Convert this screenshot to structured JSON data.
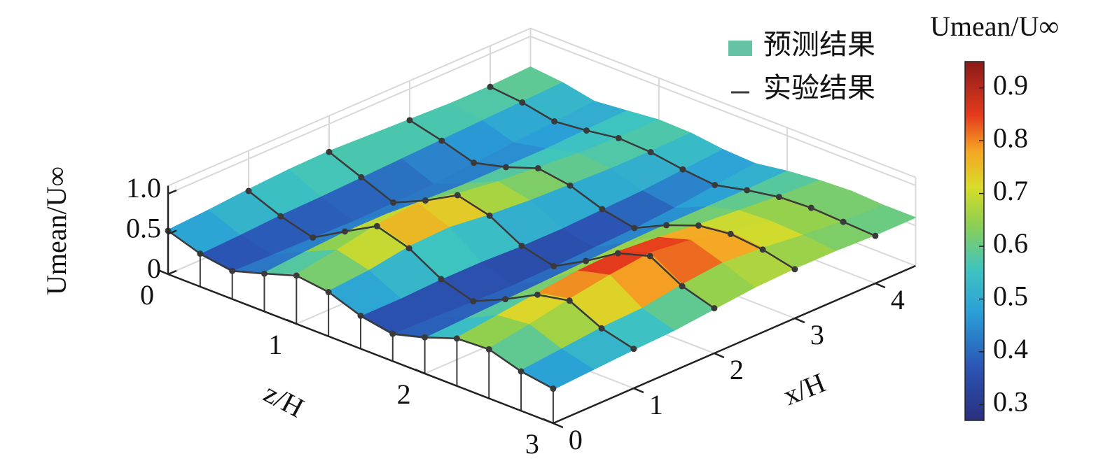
{
  "chart_data": {
    "type": "surface",
    "xlabel": "x/H",
    "zlabel": "z/H",
    "ylabel": "Umean/U∞",
    "colorbar_label": "Umean/U∞",
    "x": [
      0,
      0.5,
      1,
      1.5,
      2,
      2.5,
      3,
      3.5,
      4,
      4.5
    ],
    "z": [
      0,
      0.25,
      0.5,
      0.75,
      1,
      1.25,
      1.5,
      1.75,
      2,
      2.25,
      2.5,
      2.75,
      3
    ],
    "xlim": [
      0,
      4.5
    ],
    "zlim": [
      0,
      3
    ],
    "ylim": [
      0,
      1.1
    ],
    "clim": [
      0.27,
      0.95
    ],
    "xticks": [
      0,
      1,
      2,
      3,
      4
    ],
    "zticks": [
      0,
      1,
      2,
      3
    ],
    "yticks": [
      0,
      0.5,
      {
        "value": 1,
        "label": "1.0"
      }
    ],
    "cticks": [
      0.3,
      0.4,
      0.5,
      0.6,
      0.7,
      0.8,
      0.9
    ],
    "grid": true,
    "legend": "upper right",
    "surface": {
      "name": "预测结果",
      "color": "#66c2a5",
      "values": [
        [
          0.55,
          0.4,
          0.34,
          0.48,
          0.62,
          0.56,
          0.4,
          0.33,
          0.44,
          0.6,
          0.62,
          0.5,
          0.42
        ],
        [
          0.58,
          0.42,
          0.33,
          0.52,
          0.7,
          0.6,
          0.4,
          0.32,
          0.46,
          0.66,
          0.7,
          0.55,
          0.45
        ],
        [
          0.62,
          0.45,
          0.32,
          0.55,
          0.8,
          0.68,
          0.42,
          0.3,
          0.48,
          0.72,
          0.8,
          0.6,
          0.48
        ],
        [
          0.65,
          0.46,
          0.31,
          0.55,
          0.85,
          0.7,
          0.42,
          0.29,
          0.5,
          0.78,
          0.88,
          0.62,
          0.5
        ],
        [
          0.66,
          0.48,
          0.32,
          0.52,
          0.75,
          0.64,
          0.4,
          0.3,
          0.52,
          0.8,
          0.94,
          0.7,
          0.55
        ],
        [
          0.64,
          0.5,
          0.34,
          0.5,
          0.68,
          0.6,
          0.4,
          0.32,
          0.54,
          0.76,
          0.88,
          0.75,
          0.6
        ],
        [
          0.62,
          0.52,
          0.38,
          0.5,
          0.64,
          0.58,
          0.42,
          0.34,
          0.55,
          0.7,
          0.76,
          0.72,
          0.62
        ],
        [
          0.6,
          0.54,
          0.42,
          0.5,
          0.6,
          0.56,
          0.44,
          0.38,
          0.55,
          0.66,
          0.68,
          0.66,
          0.62
        ],
        [
          0.6,
          0.56,
          0.46,
          0.52,
          0.58,
          0.56,
          0.48,
          0.44,
          0.55,
          0.62,
          0.64,
          0.62,
          0.6
        ],
        [
          0.62,
          0.58,
          0.5,
          0.54,
          0.58,
          0.57,
          0.52,
          0.5,
          0.56,
          0.6,
          0.62,
          0.6,
          0.6
        ]
      ]
    },
    "experiment": {
      "name": "实验结果",
      "color": "#3a3a3a",
      "x": [
        0,
        1,
        2,
        3,
        4
      ],
      "values": [
        [
          0.54,
          0.41,
          0.35,
          0.47,
          0.6,
          0.55,
          0.41,
          0.34,
          0.45,
          0.59,
          0.61,
          0.49,
          0.43
        ],
        [
          0.6,
          0.44,
          0.33,
          0.56,
          0.78,
          0.66,
          0.43,
          0.31,
          0.49,
          0.7,
          0.78,
          0.59,
          0.49
        ],
        [
          0.65,
          0.49,
          0.33,
          0.51,
          0.73,
          0.63,
          0.41,
          0.31,
          0.53,
          0.78,
          0.9,
          0.68,
          0.56
        ],
        [
          0.61,
          0.51,
          0.39,
          0.49,
          0.63,
          0.57,
          0.43,
          0.35,
          0.54,
          0.69,
          0.74,
          0.7,
          0.61
        ],
        [
          0.59,
          0.55,
          0.47,
          0.51,
          0.57,
          0.55,
          0.49,
          0.45,
          0.54,
          0.61,
          0.63,
          0.61,
          0.59
        ]
      ]
    }
  }
}
